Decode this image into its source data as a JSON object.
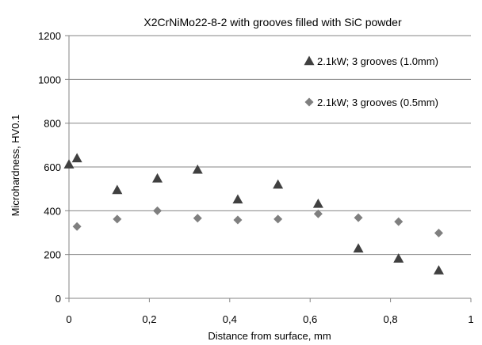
{
  "chart_data": {
    "type": "scatter",
    "title": "X2CrNiMo22-8-2 with grooves filled with SiC powder",
    "xlabel": "Distance from surface, mm",
    "ylabel": "Microhardness, HV0.1",
    "xlim": [
      0,
      1
    ],
    "ylim": [
      0,
      1200
    ],
    "xticks": [
      0,
      0.2,
      0.4,
      0.6,
      0.8,
      1
    ],
    "xtick_labels": [
      "0",
      "0,2",
      "0,4",
      "0,6",
      "0,8",
      "1"
    ],
    "yticks": [
      0,
      200,
      400,
      600,
      800,
      1000,
      1200
    ],
    "ytick_labels": [
      "0",
      "200",
      "400",
      "600",
      "800",
      "1000",
      "1200"
    ],
    "grid": "horizontal",
    "legend": "top-right",
    "series": [
      {
        "name": "2.1kW; 3 grooves (1.0mm)",
        "marker": "triangle",
        "color": "#404040",
        "x": [
          0,
          0.02,
          0.12,
          0.22,
          0.32,
          0.42,
          0.52,
          0.62,
          0.72,
          0.82,
          0.92
        ],
        "y": [
          612,
          640,
          495,
          548,
          588,
          452,
          520,
          432,
          228,
          182,
          128
        ]
      },
      {
        "name": "2.1kW; 3 grooves (0.5mm)",
        "marker": "diamond",
        "color": "#7f7f7f",
        "x": [
          0.02,
          0.12,
          0.22,
          0.32,
          0.42,
          0.52,
          0.62,
          0.72,
          0.82,
          0.92
        ],
        "y": [
          328,
          362,
          400,
          366,
          358,
          362,
          386,
          368,
          350,
          298
        ]
      }
    ]
  }
}
